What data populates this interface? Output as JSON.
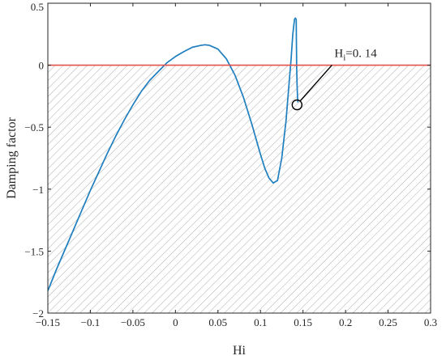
{
  "chart_data": {
    "type": "line",
    "title": "",
    "xlabel": "Hi",
    "ylabel": "Damping factor",
    "xlim": [
      -0.15,
      0.3
    ],
    "ylim": [
      -2,
      0.5
    ],
    "xticks": [
      -0.15,
      -0.1,
      -0.05,
      0,
      0.05,
      0.1,
      0.15,
      0.2,
      0.25,
      0.3
    ],
    "xtick_labels": [
      "−0.15",
      "−0.1",
      "−0.05",
      "0",
      "0.05",
      "0.1",
      "0.15",
      "0.2",
      "0.25",
      "0.3"
    ],
    "yticks": [
      -2,
      -1.5,
      -1,
      -0.5,
      0,
      0.5
    ],
    "ytick_labels": [
      "−2",
      "−1.5",
      "−1",
      "−0.5",
      "0",
      "0.5"
    ],
    "grid": false,
    "reference_line": {
      "y": 0,
      "color": "#e8504a"
    },
    "shaded_region": {
      "y_from": -2,
      "y_to": 0,
      "pattern": "diagonal-hatch"
    },
    "series": [
      {
        "color": "#1f7fbf",
        "x": [
          -0.15,
          -0.14,
          -0.13,
          -0.12,
          -0.11,
          -0.1,
          -0.09,
          -0.08,
          -0.07,
          -0.06,
          -0.05,
          -0.04,
          -0.03,
          -0.02,
          -0.01,
          0.0,
          0.01,
          0.02,
          0.03,
          0.035,
          0.04,
          0.05,
          0.06,
          0.07,
          0.08,
          0.09,
          0.1,
          0.105,
          0.11,
          0.115,
          0.12,
          0.125,
          0.13,
          0.133,
          0.136,
          0.138,
          0.14,
          0.141,
          0.142,
          0.1425,
          0.143,
          0.1435,
          0.144
        ],
        "y": [
          -1.82,
          -1.65,
          -1.49,
          -1.33,
          -1.17,
          -1.01,
          -0.86,
          -0.71,
          -0.57,
          -0.44,
          -0.32,
          -0.21,
          -0.12,
          -0.05,
          0.02,
          0.07,
          0.11,
          0.145,
          0.16,
          0.165,
          0.16,
          0.13,
          0.05,
          -0.08,
          -0.26,
          -0.48,
          -0.72,
          -0.83,
          -0.91,
          -0.95,
          -0.93,
          -0.75,
          -0.45,
          -0.2,
          0.05,
          0.25,
          0.37,
          0.38,
          0.37,
          0.0,
          -0.15,
          -0.25,
          -0.3
        ]
      }
    ],
    "annotation": {
      "text_main": "H",
      "text_sub": "i",
      "text_value": "=0. 14",
      "point": [
        0.143,
        -0.32
      ],
      "label_at": [
        0.165,
        0.04
      ]
    }
  }
}
